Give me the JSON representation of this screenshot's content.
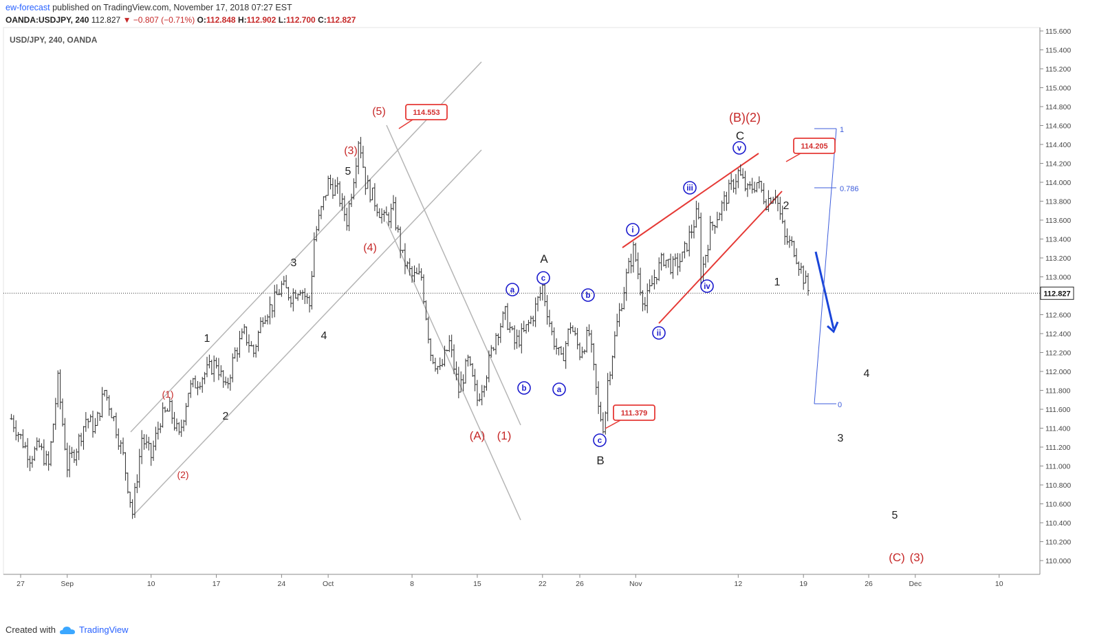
{
  "header": {
    "publisher": "ew-forecast",
    "published_text": "published on TradingView.com, November 17, 2018 07:27 EST",
    "symbol": "OANDA:USDJPY, 240",
    "last": "112.827",
    "change": "−0.807 (−0.71%)",
    "o_label": "O:",
    "o_value": "112.848",
    "h_label": "H:",
    "h_value": "112.902",
    "l_label": "L:",
    "l_value": "112.700",
    "c_label": "C:",
    "c_value": "112.827"
  },
  "footer": {
    "created_with": "Created with",
    "brand": "TradingView"
  },
  "colors": {
    "red": "#c62828",
    "blue": "#1a1acd",
    "grey_channel": "#b5b5b5",
    "bar": "#2b2b2b"
  },
  "chart_data": {
    "type": "ohlc",
    "title": "USD/JPY, 240, OANDA",
    "ylim": [
      109.8,
      115.7
    ],
    "y_ticks": [
      "115.600",
      "115.400",
      "115.200",
      "115.000",
      "114.800",
      "114.600",
      "114.400",
      "114.200",
      "114.000",
      "113.800",
      "113.600",
      "113.400",
      "113.200",
      "113.000",
      "112.600",
      "112.400",
      "112.200",
      "112.000",
      "111.800",
      "111.600",
      "111.400",
      "111.200",
      "111.000",
      "110.800",
      "110.600",
      "110.400",
      "110.200",
      "110.000"
    ],
    "y_tick_values": [
      115.6,
      115.4,
      115.2,
      115.0,
      114.8,
      114.6,
      114.4,
      114.2,
      114.0,
      113.8,
      113.6,
      113.4,
      113.2,
      113.0,
      112.6,
      112.4,
      112.2,
      112.0,
      111.8,
      111.6,
      111.4,
      111.2,
      111.0,
      110.8,
      110.6,
      110.4,
      110.2,
      110.0
    ],
    "last_price_label": "112.827",
    "last_price": 112.827,
    "x_ticks": [
      {
        "label": "27",
        "day": 0
      },
      {
        "label": "Sep",
        "day": 5
      },
      {
        "label": "10",
        "day": 14
      },
      {
        "label": "17",
        "day": 21
      },
      {
        "label": "24",
        "day": 28
      },
      {
        "label": "Oct",
        "day": 33
      },
      {
        "label": "8",
        "day": 42
      },
      {
        "label": "15",
        "day": 49
      },
      {
        "label": "22",
        "day": 56
      },
      {
        "label": "26",
        "day": 60
      },
      {
        "label": "Nov",
        "day": 66
      },
      {
        "label": "12",
        "day": 77
      },
      {
        "label": "19",
        "day": 84
      },
      {
        "label": "26",
        "day": 91
      },
      {
        "label": "Dec",
        "day": 96
      },
      {
        "label": "10",
        "day": 105
      }
    ],
    "price_path": [
      [
        -1,
        111.5
      ],
      [
        1,
        111.1
      ],
      [
        2,
        111.2
      ],
      [
        3,
        111.0
      ],
      [
        4,
        111.9
      ],
      [
        5,
        111.0
      ],
      [
        6,
        111.2
      ],
      [
        7,
        111.5
      ],
      [
        8,
        111.4
      ],
      [
        9,
        111.8
      ],
      [
        10,
        111.5
      ],
      [
        11,
        111.1
      ],
      [
        12,
        110.5
      ],
      [
        13,
        111.3
      ],
      [
        14,
        111.1
      ],
      [
        15,
        111.5
      ],
      [
        16,
        111.6
      ],
      [
        17,
        111.3
      ],
      [
        18,
        111.8
      ],
      [
        19,
        111.9
      ],
      [
        20,
        112.0
      ],
      [
        21,
        112.1
      ],
      [
        22,
        111.8
      ],
      [
        23,
        112.2
      ],
      [
        24,
        112.4
      ],
      [
        25,
        112.2
      ],
      [
        26,
        112.6
      ],
      [
        27,
        112.7
      ],
      [
        28,
        112.9
      ],
      [
        29,
        112.8
      ],
      [
        30,
        112.9
      ],
      [
        31,
        112.7
      ],
      [
        31.5,
        113.4
      ],
      [
        32,
        113.6
      ],
      [
        33,
        114.0
      ],
      [
        34,
        113.9
      ],
      [
        35,
        113.6
      ],
      [
        35.8,
        114.1
      ],
      [
        36.3,
        114.5
      ],
      [
        37,
        114.0
      ],
      [
        38,
        113.8
      ],
      [
        39,
        113.6
      ],
      [
        40,
        113.7
      ],
      [
        41,
        113.2
      ],
      [
        42,
        113.0
      ],
      [
        43,
        113.0
      ],
      [
        44,
        112.2
      ],
      [
        45,
        112.0
      ],
      [
        46,
        112.3
      ],
      [
        47,
        111.8
      ],
      [
        48,
        112.1
      ],
      [
        49,
        111.7
      ],
      [
        50,
        112.0
      ],
      [
        51,
        112.4
      ],
      [
        52,
        112.6
      ],
      [
        53,
        112.3
      ],
      [
        54,
        112.4
      ],
      [
        55,
        112.6
      ],
      [
        56,
        112.9
      ],
      [
        57,
        112.4
      ],
      [
        58,
        112.1
      ],
      [
        59,
        112.5
      ],
      [
        60,
        112.2
      ],
      [
        61,
        112.4
      ],
      [
        62,
        111.6
      ],
      [
        62.6,
        111.4
      ],
      [
        63,
        111.9
      ],
      [
        64,
        112.5
      ],
      [
        65,
        113.0
      ],
      [
        65.8,
        113.3
      ],
      [
        66.5,
        112.9
      ],
      [
        67,
        112.7
      ],
      [
        68,
        113.0
      ],
      [
        69,
        113.2
      ],
      [
        70,
        113.1
      ],
      [
        71,
        113.2
      ],
      [
        72,
        113.5
      ],
      [
        72.7,
        113.7
      ],
      [
        73,
        113.0
      ],
      [
        74,
        113.5
      ],
      [
        75,
        113.7
      ],
      [
        76,
        113.9
      ],
      [
        77,
        114.1
      ],
      [
        78,
        113.9
      ],
      [
        79,
        114.0
      ],
      [
        80,
        113.8
      ],
      [
        81,
        113.9
      ],
      [
        82,
        113.4
      ],
      [
        83,
        113.3
      ],
      [
        84,
        113.0
      ],
      [
        84.7,
        112.8
      ]
    ],
    "annotations": [
      {
        "text": "(1)",
        "color": "red"
      },
      {
        "text": "(2)",
        "color": "red"
      },
      {
        "text": "(3)",
        "color": "red"
      },
      {
        "text": "(4)",
        "color": "red"
      },
      {
        "text": "(5)",
        "color": "red"
      },
      {
        "text": "(A)",
        "color": "red"
      },
      {
        "text": "(1)",
        "color": "red"
      },
      {
        "text": "(B)(2)",
        "color": "red"
      },
      {
        "text": "(C)",
        "color": "red"
      },
      {
        "text": "(3)",
        "color": "red"
      },
      {
        "text": "1"
      },
      {
        "text": "2"
      },
      {
        "text": "3"
      },
      {
        "text": "4"
      },
      {
        "text": "5"
      },
      {
        "text": "A"
      },
      {
        "text": "B"
      },
      {
        "text": "C"
      },
      {
        "text": "1"
      },
      {
        "text": "2"
      },
      {
        "text": "3"
      },
      {
        "text": "4"
      },
      {
        "text": "5"
      },
      {
        "text": "a",
        "color": "blue"
      },
      {
        "text": "b",
        "color": "blue"
      },
      {
        "text": "c",
        "color": "blue"
      },
      {
        "text": "a",
        "color": "blue"
      },
      {
        "text": "b",
        "color": "blue"
      },
      {
        "text": "c",
        "color": "blue"
      },
      {
        "text": "i",
        "color": "blue"
      },
      {
        "text": "ii",
        "color": "blue"
      },
      {
        "text": "iii",
        "color": "blue"
      },
      {
        "text": "iv",
        "color": "blue"
      },
      {
        "text": "v",
        "color": "blue"
      }
    ],
    "price_callouts": [
      "114.553",
      "111.379",
      "114.205"
    ],
    "fib_levels": [
      {
        "label": "1"
      },
      {
        "label": "0.786"
      },
      {
        "label": "0"
      }
    ]
  }
}
